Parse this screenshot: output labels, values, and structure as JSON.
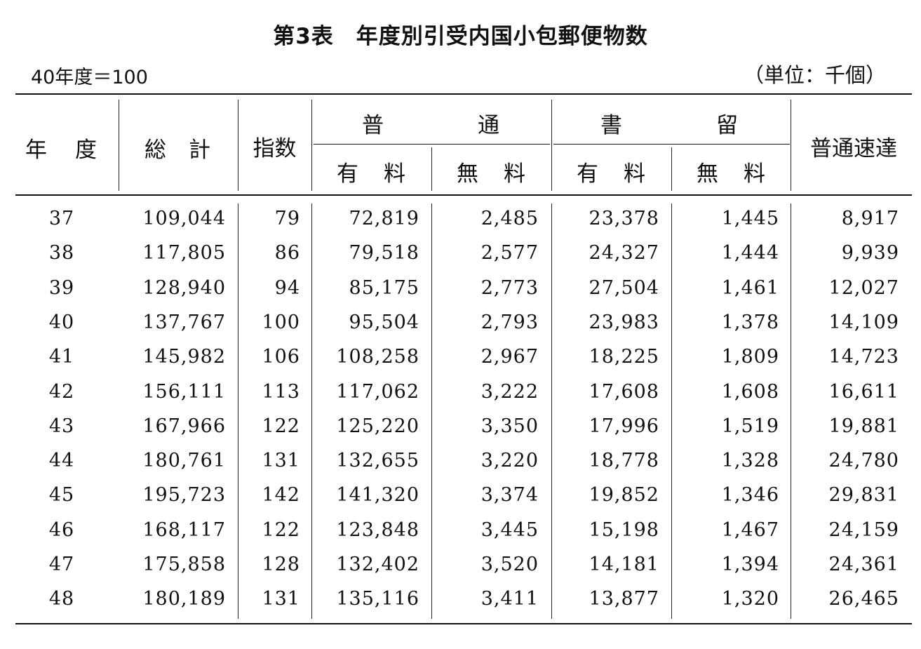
{
  "title": "第3表　年度別引受内国小包郵便物数",
  "index_note": "40年度＝100",
  "unit_note": "（単位：千個）",
  "headers": {
    "year": [
      "年",
      "度"
    ],
    "total": [
      "総",
      "計"
    ],
    "index": "指数",
    "ordinary": [
      "普",
      "通"
    ],
    "registered": [
      "書",
      "留"
    ],
    "paid": [
      "有",
      "料"
    ],
    "free": [
      "無",
      "料"
    ],
    "express": "普通速達"
  },
  "rows": [
    [
      "37",
      "109,044",
      "79",
      "72,819",
      "2,485",
      "23,378",
      "1,445",
      "8,917"
    ],
    [
      "38",
      "117,805",
      "86",
      "79,518",
      "2,577",
      "24,327",
      "1,444",
      "9,939"
    ],
    [
      "39",
      "128,940",
      "94",
      "85,175",
      "2,773",
      "27,504",
      "1,461",
      "12,027"
    ],
    [
      "40",
      "137,767",
      "100",
      "95,504",
      "2,793",
      "23,983",
      "1,378",
      "14,109"
    ],
    [
      "41",
      "145,982",
      "106",
      "108,258",
      "2,967",
      "18,225",
      "1,809",
      "14,723"
    ],
    [
      "42",
      "156,111",
      "113",
      "117,062",
      "3,222",
      "17,608",
      "1,608",
      "16,611"
    ],
    [
      "43",
      "167,966",
      "122",
      "125,220",
      "3,350",
      "17,996",
      "1,519",
      "19,881"
    ],
    [
      "44",
      "180,761",
      "131",
      "132,655",
      "3,220",
      "18,778",
      "1,328",
      "24,780"
    ],
    [
      "45",
      "195,723",
      "142",
      "141,320",
      "3,374",
      "19,852",
      "1,346",
      "29,831"
    ],
    [
      "46",
      "168,117",
      "122",
      "123,848",
      "3,445",
      "15,198",
      "1,467",
      "24,159"
    ],
    [
      "47",
      "175,858",
      "128",
      "132,402",
      "3,520",
      "14,181",
      "1,394",
      "24,361"
    ],
    [
      "48",
      "180,189",
      "131",
      "135,116",
      "3,411",
      "13,877",
      "1,320",
      "26,465"
    ]
  ]
}
